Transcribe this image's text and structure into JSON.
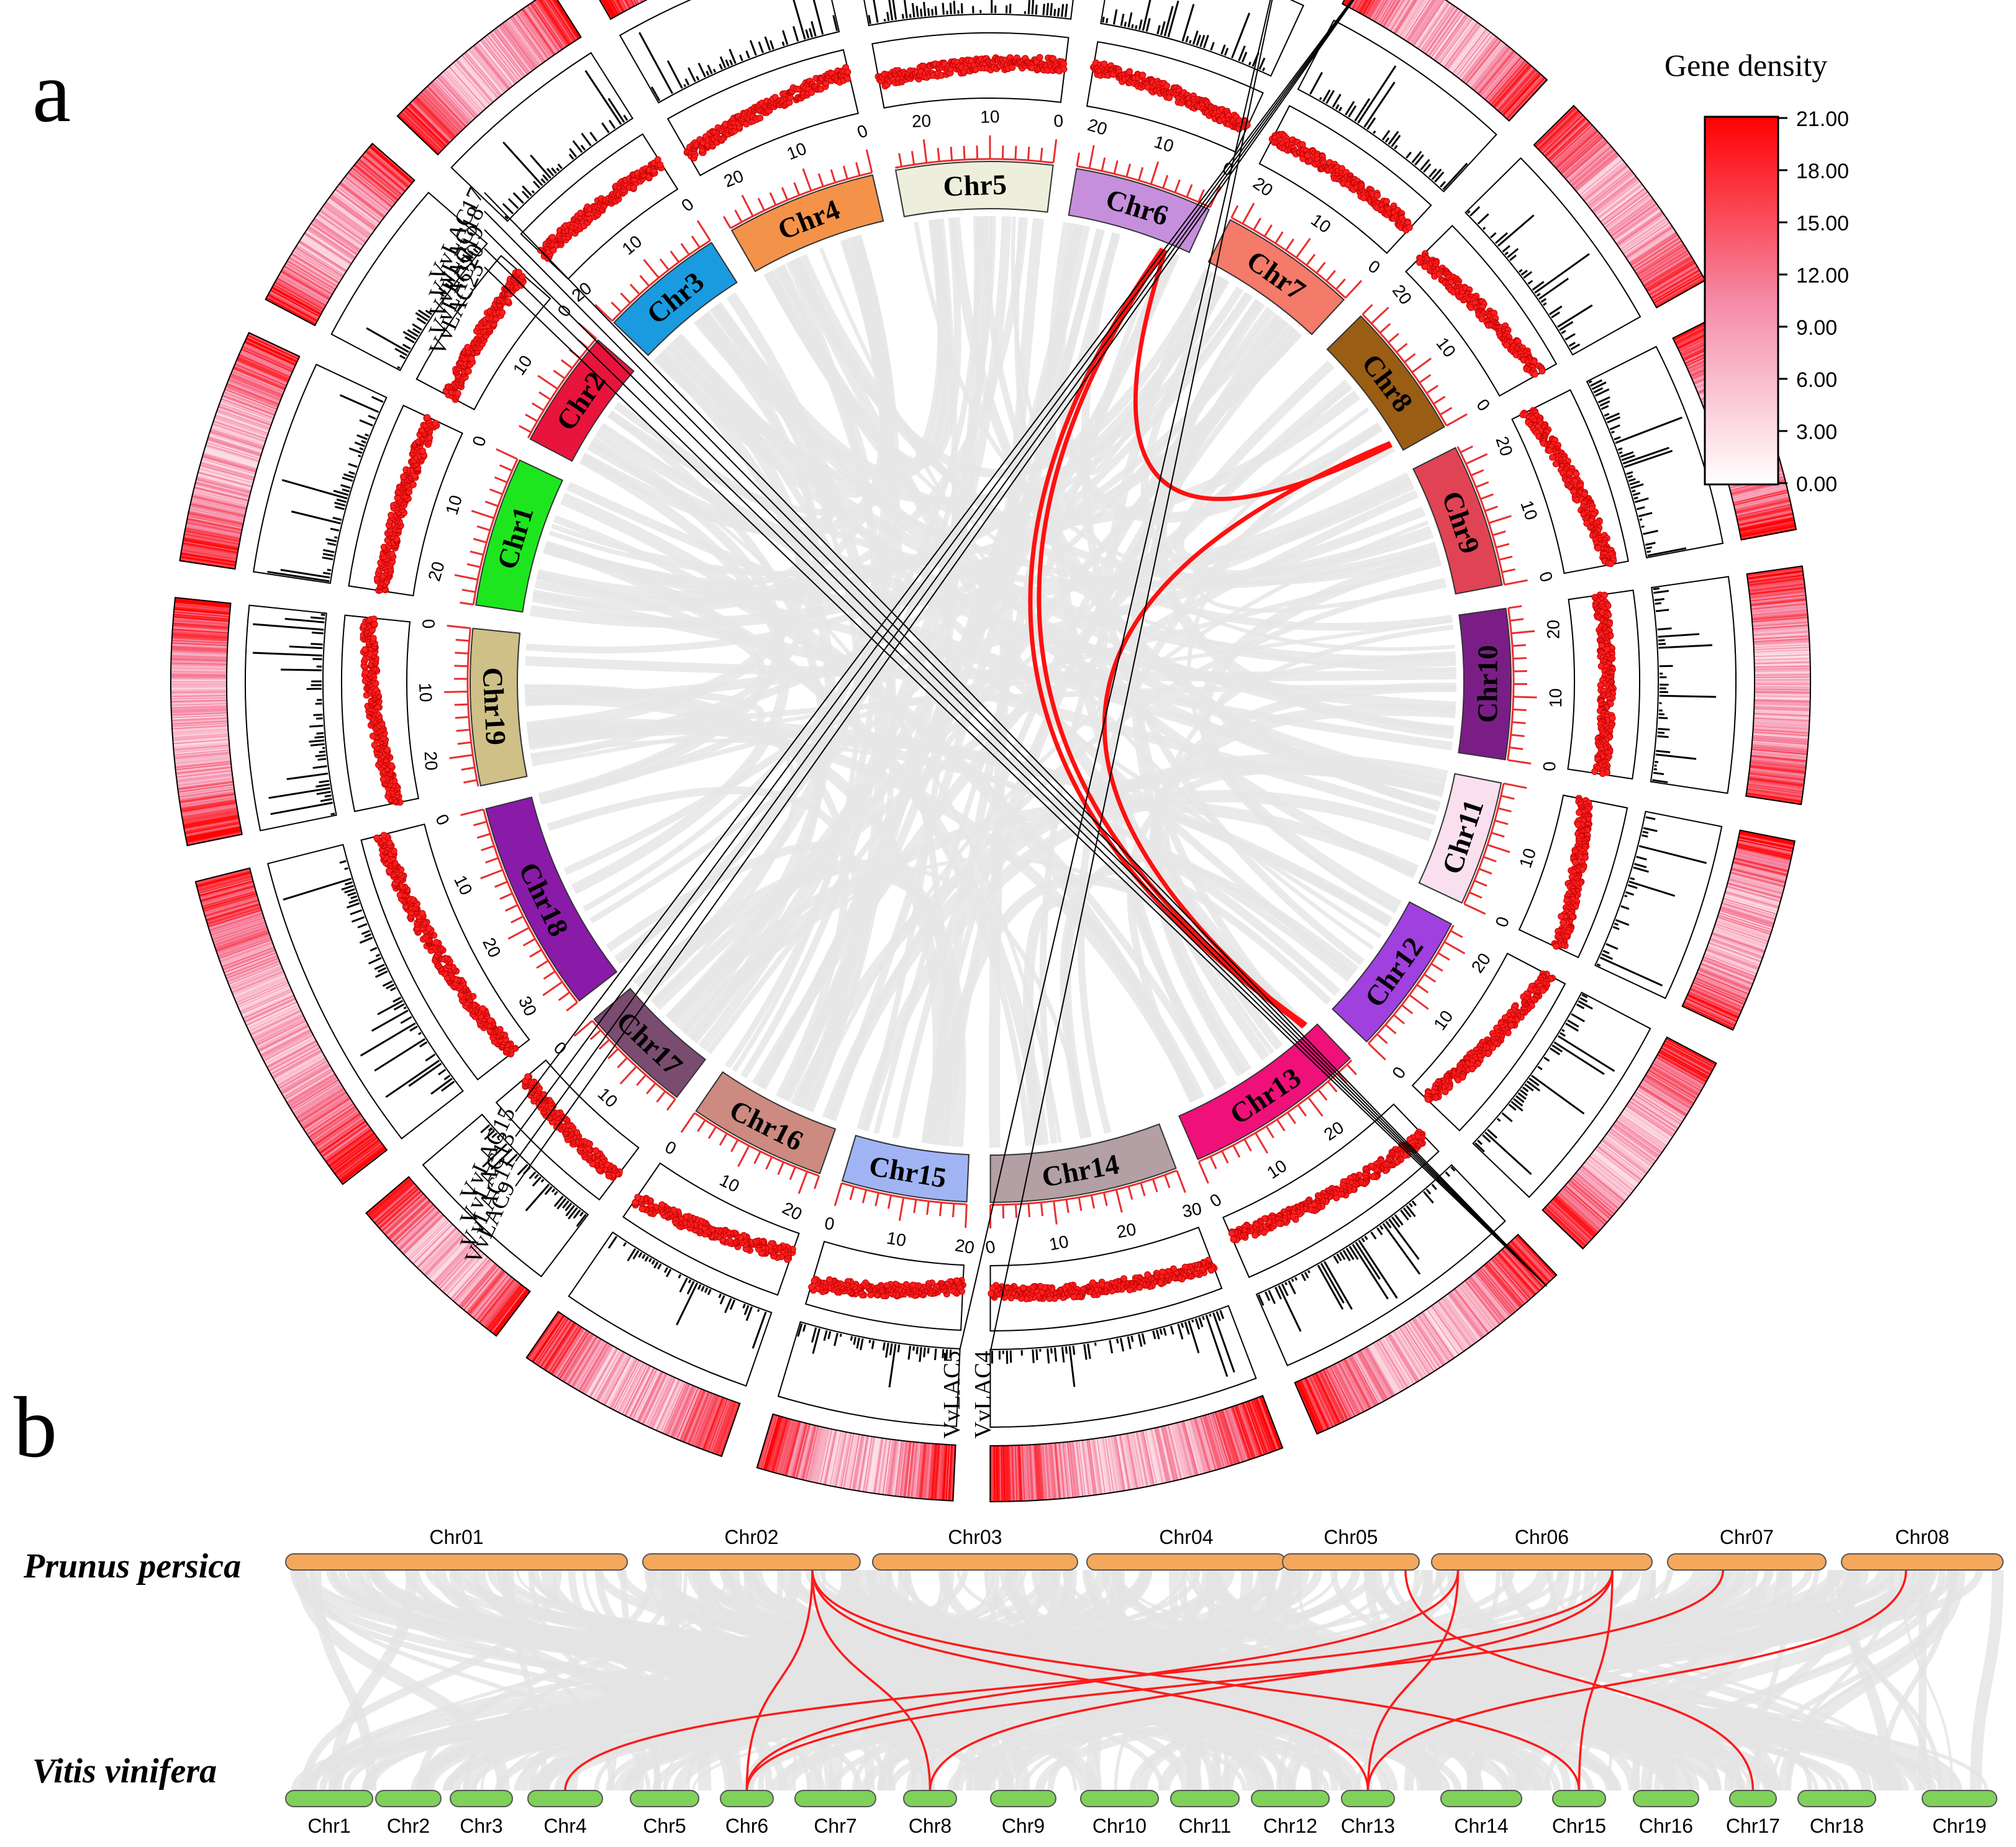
{
  "chart_data": [
    {
      "type": "circos",
      "panel_label": "a",
      "chromosomes": [
        {
          "name": "Chr1",
          "length": 24,
          "color": "#1ee61e",
          "ticks": [
            0,
            10,
            20
          ]
        },
        {
          "name": "Chr2",
          "length": 19,
          "color": "#e8143c",
          "ticks": [
            0,
            10
          ]
        },
        {
          "name": "Chr3",
          "length": 20,
          "color": "#1a9be0",
          "ticks": [
            0,
            10,
            20
          ]
        },
        {
          "name": "Chr4",
          "length": 24,
          "color": "#f4924a",
          "ticks": [
            0,
            10,
            20
          ]
        },
        {
          "name": "Chr5",
          "length": 25,
          "color": "#eeeedc",
          "ticks": [
            0,
            10,
            20
          ]
        },
        {
          "name": "Chr6",
          "length": 22,
          "color": "#c68fdc",
          "ticks": [
            0,
            10,
            20
          ]
        },
        {
          "name": "Chr7",
          "length": 22,
          "color": "#f47a6a",
          "ticks": [
            0,
            10,
            20
          ]
        },
        {
          "name": "Chr8",
          "length": 22,
          "color": "#9a5d14",
          "ticks": [
            0,
            10,
            20
          ]
        },
        {
          "name": "Chr9",
          "length": 23,
          "color": "#e04454",
          "ticks": [
            0,
            10,
            20
          ]
        },
        {
          "name": "Chr10",
          "length": 24,
          "color": "#7a1e86",
          "ticks": [
            0,
            10,
            20
          ]
        },
        {
          "name": "Chr11",
          "length": 20,
          "color": "#fae0ee",
          "ticks": [
            0,
            10
          ]
        },
        {
          "name": "Chr12",
          "length": 23,
          "color": "#a040de",
          "ticks": [
            0,
            10,
            20
          ]
        },
        {
          "name": "Chr13",
          "length": 29,
          "color": "#f0107a",
          "ticks": [
            0,
            10,
            20
          ]
        },
        {
          "name": "Chr14",
          "length": 30,
          "color": "#b2a0a4",
          "ticks": [
            0,
            10,
            20,
            30
          ]
        },
        {
          "name": "Chr15",
          "length": 20,
          "color": "#a0b4f4",
          "ticks": [
            0,
            10,
            20
          ]
        },
        {
          "name": "Chr16",
          "length": 22,
          "color": "#cc8a80",
          "ticks": [
            0,
            10,
            20
          ]
        },
        {
          "name": "Chr17",
          "length": 18,
          "color": "#7a4c70",
          "ticks": [
            0,
            10
          ]
        },
        {
          "name": "Chr18",
          "length": 34,
          "color": "#8a1aa8",
          "ticks": [
            0,
            10,
            20,
            30
          ]
        },
        {
          "name": "Chr19",
          "length": 25,
          "color": "#cec086",
          "ticks": [
            0,
            10,
            20
          ]
        }
      ],
      "gene_labels": [
        {
          "chr": "Chr13",
          "labels": [
            "VvLAC23",
            "VvLAC20",
            "VvLAC19",
            "VvLAC18",
            "VvLAC17"
          ]
        },
        {
          "chr": "Chr7",
          "labels": [
            "VvLAC15",
            "VvLAC13",
            "VvLAC11",
            "VvLAC9"
          ]
        },
        {
          "chr": "Chr6",
          "labels": [
            "VvLAC5",
            "VvLAC4"
          ]
        }
      ],
      "red_links": [
        {
          "from": "Chr13",
          "to": "Chr6"
        },
        {
          "from": "Chr13",
          "to": "Chr6"
        },
        {
          "from": "Chr13",
          "to": "Chr8"
        },
        {
          "from": "Chr8",
          "to": "Chr6"
        }
      ],
      "legend": {
        "title": "Gene density",
        "ticks": [
          "21.00",
          "18.00",
          "15.00",
          "12.00",
          "9.00",
          "6.00",
          "3.00",
          "0.00"
        ],
        "color_low": "#ffffff",
        "color_high": "#ff0000"
      }
    },
    {
      "type": "synteny",
      "panel_label": "b",
      "top_species": "Prunus persica",
      "bottom_species": "Vitis vinifera",
      "top_chromosomes": [
        "Chr01",
        "Chr02",
        "Chr03",
        "Chr04",
        "Chr05",
        "Chr06",
        "Chr07",
        "Chr08"
      ],
      "bottom_chromosomes": [
        "Chr1",
        "Chr2",
        "Chr3",
        "Chr4",
        "Chr5",
        "Chr6",
        "Chr7",
        "Chr8",
        "Chr9",
        "Chr10",
        "Chr11",
        "Chr12",
        "Chr13",
        "Chr14",
        "Chr15",
        "Chr16",
        "Chr17",
        "Chr18",
        "Chr19"
      ],
      "top_color": "#f4a85c",
      "bottom_color": "#7fd15a",
      "red_links": [
        {
          "top": "Chr02",
          "bottom": "Chr6"
        },
        {
          "top": "Chr02",
          "bottom": "Chr8"
        },
        {
          "top": "Chr02",
          "bottom": "Chr13"
        },
        {
          "top": "Chr02",
          "bottom": "Chr15"
        },
        {
          "top": "Chr06",
          "bottom": "Chr4"
        },
        {
          "top": "Chr06",
          "bottom": "Chr6"
        },
        {
          "top": "Chr06",
          "bottom": "Chr8"
        },
        {
          "top": "Chr06",
          "bottom": "Chr13"
        },
        {
          "top": "Chr06",
          "bottom": "Chr15"
        },
        {
          "top": "Chr07",
          "bottom": "Chr6"
        },
        {
          "top": "Chr08",
          "bottom": "Chr13"
        },
        {
          "top": "Chr05",
          "bottom": "Chr17"
        }
      ]
    }
  ]
}
